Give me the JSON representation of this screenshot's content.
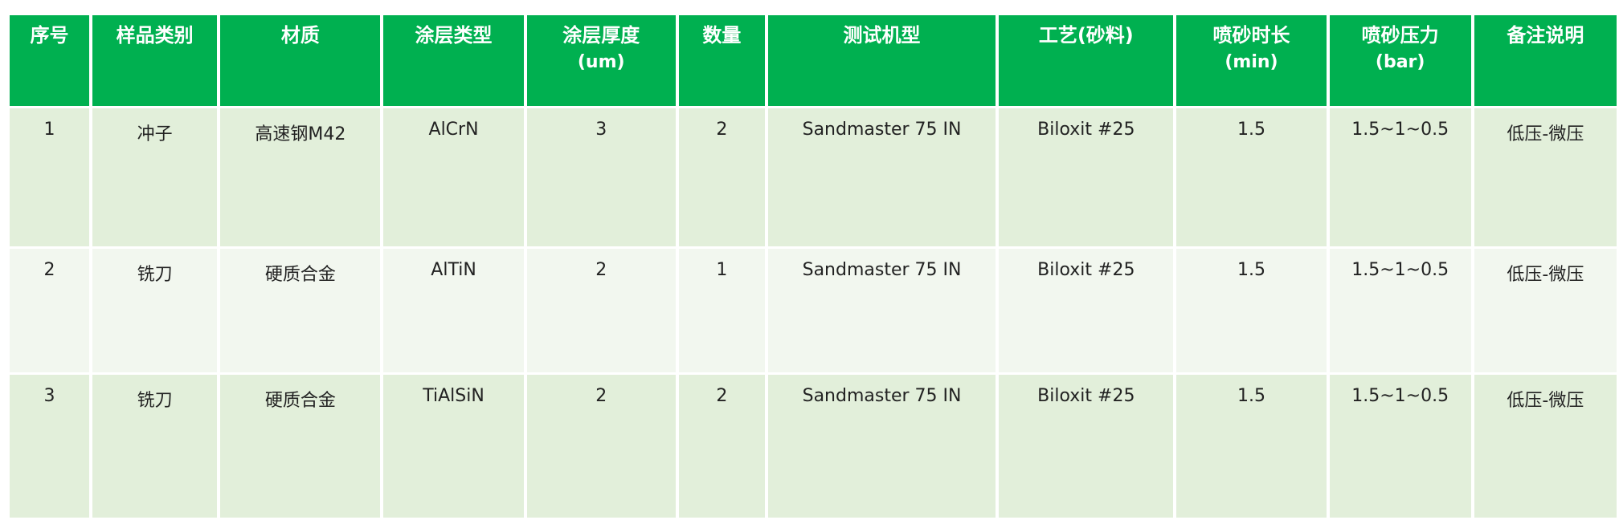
{
  "colors": {
    "header_bg": "#00B050",
    "row_odd_bg": "#E2EFDA",
    "row_even_bg": "#F2F7EF",
    "header_text": "#FFFFFF"
  },
  "headers": [
    {
      "label": "序号",
      "unit": ""
    },
    {
      "label": "样品类别",
      "unit": ""
    },
    {
      "label": "材质",
      "unit": ""
    },
    {
      "label": "涂层类型",
      "unit": ""
    },
    {
      "label": "涂层厚度",
      "unit": "(um)"
    },
    {
      "label": "数量",
      "unit": ""
    },
    {
      "label": "测试机型",
      "unit": ""
    },
    {
      "label": "工艺(砂料)",
      "unit": ""
    },
    {
      "label": "喷砂时长",
      "unit": "(min)"
    },
    {
      "label": "喷砂压力",
      "unit": "(bar)"
    },
    {
      "label": "备注说明",
      "unit": ""
    }
  ],
  "rows": [
    [
      "1",
      "冲子",
      "高速钢M42",
      "AlCrN",
      "3",
      "2",
      "Sandmaster 75 IN",
      "Biloxit #25",
      "1.5",
      "1.5~1~0.5",
      "低压-微压"
    ],
    [
      "2",
      "铣刀",
      "硬质合金",
      "AlTiN",
      "2",
      "1",
      "Sandmaster 75 IN",
      "Biloxit #25",
      "1.5",
      "1.5~1~0.5",
      "低压-微压"
    ],
    [
      "3",
      "铣刀",
      "硬质合金",
      "TiAlSiN",
      "2",
      "2",
      "Sandmaster 75 IN",
      "Biloxit #25",
      "1.5",
      "1.5~1~0.5",
      "低压-微压"
    ]
  ]
}
